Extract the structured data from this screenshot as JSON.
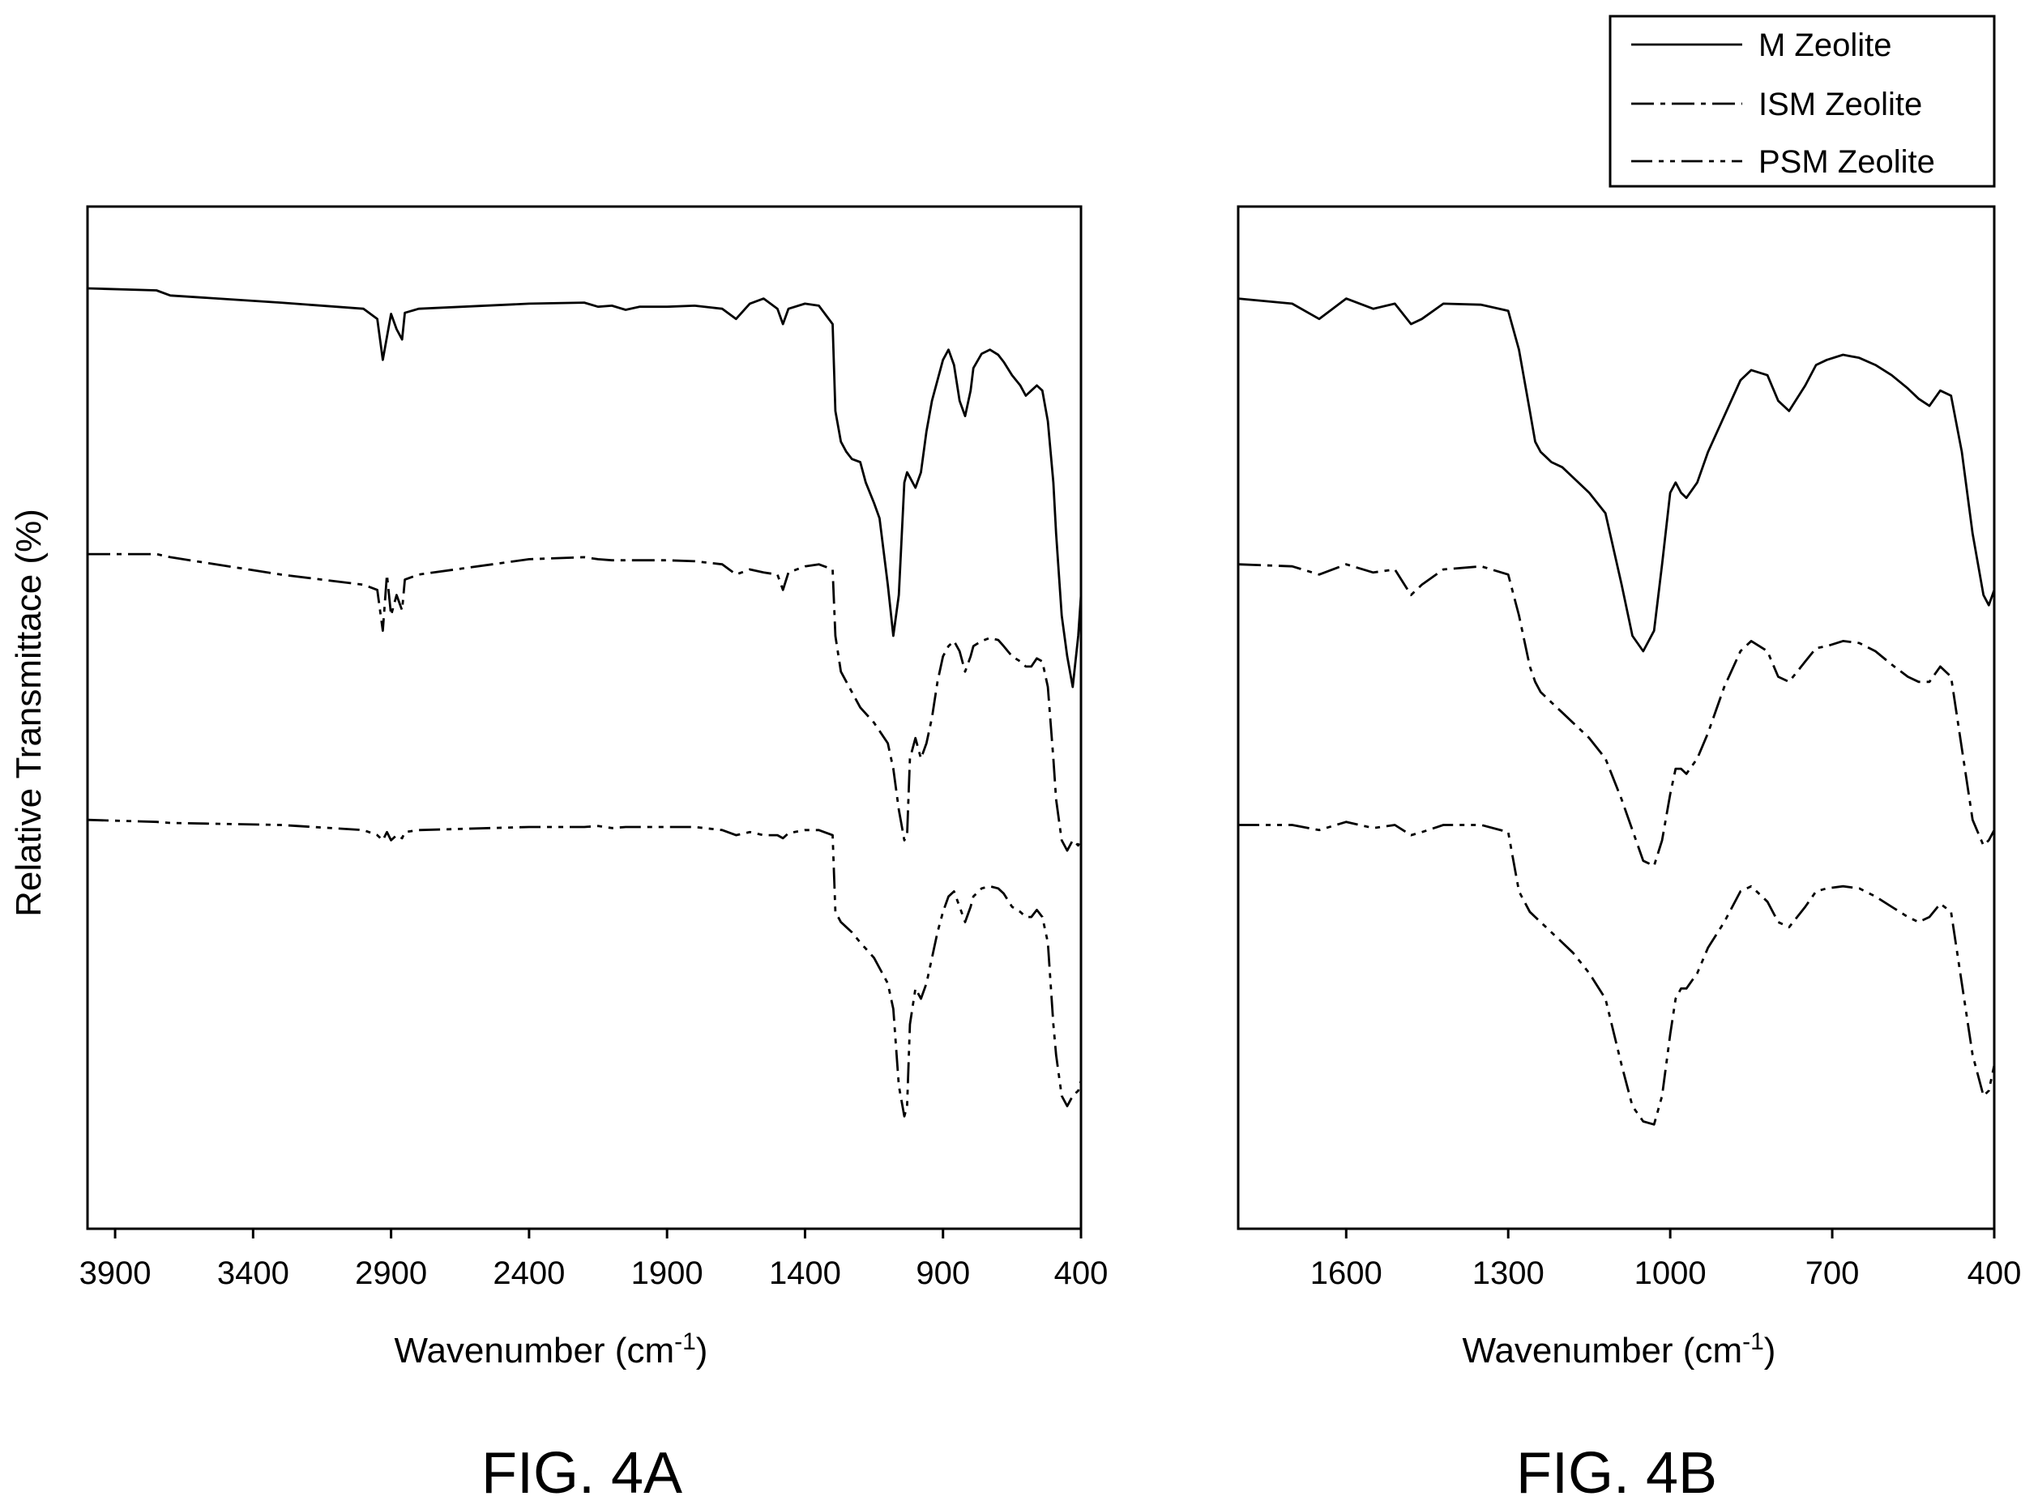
{
  "figure": {
    "ylabel": "Relative Transmittace (%)",
    "legend": {
      "placement": "top-right",
      "entries": [
        {
          "label": "M Zeolite",
          "dash": "solid"
        },
        {
          "label": "ISM Zeolite",
          "dash": "dash-dot"
        },
        {
          "label": "PSM Zeolite",
          "dash": "dash-dot-dot"
        }
      ]
    }
  },
  "chart_data": [
    {
      "type": "line",
      "caption": "FIG. 4A",
      "xlabel": "Wavenumber (cm",
      "xlabel_sup": "-1",
      "xlabel_close": ")",
      "xlim": [
        4000,
        400
      ],
      "xticks": [
        "3900",
        "3400",
        "2900",
        "2400",
        "1900",
        "1400",
        "900",
        "400"
      ],
      "ylim": [
        0,
        100
      ],
      "series": [
        {
          "name": "M Zeolite",
          "dash": "solid",
          "x": [
            4000,
            3750,
            3700,
            3300,
            3000,
            2950,
            2930,
            2900,
            2880,
            2860,
            2850,
            2800,
            2400,
            2200,
            2150,
            2100,
            2050,
            2000,
            1900,
            1800,
            1700,
            1650,
            1600,
            1550,
            1500,
            1480,
            1460,
            1400,
            1350,
            1300,
            1290,
            1270,
            1250,
            1230,
            1200,
            1180,
            1150,
            1130,
            1100,
            1080,
            1060,
            1040,
            1030,
            1020,
            1000,
            980,
            960,
            940,
            920,
            900,
            880,
            860,
            840,
            820,
            800,
            790,
            760,
            730,
            700,
            680,
            650,
            620,
            600,
            580,
            560,
            540,
            520,
            500,
            490,
            470,
            450,
            430,
            410,
            400
          ],
          "y": [
            92.0,
            91.8,
            91.3,
            90.6,
            90.0,
            89.0,
            85.0,
            89.5,
            88.0,
            87.0,
            89.6,
            90.0,
            90.5,
            90.6,
            90.2,
            90.3,
            89.9,
            90.2,
            90.2,
            90.3,
            90.0,
            89.0,
            90.5,
            91.0,
            90.0,
            88.5,
            90.0,
            90.5,
            90.3,
            88.5,
            80.0,
            77.0,
            76.0,
            75.3,
            75.0,
            73.0,
            71.0,
            69.5,
            63.0,
            58.0,
            62.0,
            73.0,
            74.0,
            73.5,
            72.5,
            74.0,
            78.0,
            81.0,
            83.0,
            85.0,
            86.0,
            84.5,
            81.0,
            79.5,
            82.0,
            84.2,
            85.6,
            86.0,
            85.5,
            84.8,
            83.5,
            82.5,
            81.5,
            82.0,
            82.5,
            82.0,
            79.0,
            73.0,
            68.0,
            60.0,
            56.0,
            53.0,
            58.0,
            62.0
          ]
        },
        {
          "name": "ISM Zeolite",
          "dash": "dash-dot",
          "x": [
            4000,
            3750,
            3700,
            3300,
            3000,
            2950,
            2930,
            2915,
            2900,
            2880,
            2860,
            2850,
            2800,
            2400,
            2200,
            2150,
            2100,
            2050,
            1900,
            1800,
            1700,
            1650,
            1600,
            1550,
            1500,
            1480,
            1460,
            1400,
            1350,
            1300,
            1290,
            1270,
            1250,
            1230,
            1200,
            1150,
            1100,
            1080,
            1060,
            1040,
            1030,
            1020,
            1000,
            980,
            960,
            940,
            920,
            900,
            880,
            860,
            840,
            820,
            800,
            790,
            760,
            730,
            700,
            680,
            650,
            620,
            600,
            580,
            560,
            540,
            520,
            500,
            490,
            470,
            450,
            430,
            410,
            400
          ],
          "y": [
            66.0,
            66.0,
            65.7,
            64.0,
            63.0,
            62.5,
            58.5,
            64.0,
            60.0,
            62.0,
            60.5,
            63.5,
            64.0,
            65.5,
            65.7,
            65.5,
            65.4,
            65.4,
            65.4,
            65.3,
            65.0,
            64.0,
            64.5,
            64.2,
            64.0,
            62.5,
            64.2,
            64.8,
            65.0,
            64.5,
            58.0,
            54.5,
            53.5,
            52.5,
            51.0,
            49.5,
            47.5,
            45.0,
            41.0,
            38.0,
            38.5,
            46.0,
            48.0,
            46.0,
            47.5,
            50.0,
            53.5,
            56.0,
            57.0,
            57.5,
            56.5,
            54.5,
            56.0,
            57.0,
            57.5,
            57.8,
            57.6,
            57.0,
            56.0,
            55.5,
            55.0,
            55.0,
            55.8,
            55.5,
            53.0,
            46.0,
            42.0,
            38.0,
            37.0,
            38.0,
            37.5,
            38.2
          ]
        },
        {
          "name": "PSM Zeolite",
          "dash": "dash-dot-dot",
          "x": [
            4000,
            3750,
            3700,
            3300,
            3000,
            2950,
            2930,
            2915,
            2900,
            2880,
            2860,
            2850,
            2800,
            2400,
            2200,
            2150,
            2100,
            2050,
            1900,
            1800,
            1700,
            1650,
            1600,
            1550,
            1500,
            1480,
            1460,
            1400,
            1350,
            1300,
            1290,
            1270,
            1250,
            1230,
            1200,
            1150,
            1100,
            1080,
            1060,
            1040,
            1030,
            1020,
            1000,
            980,
            960,
            940,
            920,
            900,
            880,
            860,
            840,
            820,
            800,
            790,
            760,
            730,
            700,
            680,
            650,
            620,
            600,
            580,
            560,
            540,
            520,
            500,
            490,
            470,
            450,
            430,
            410,
            400
          ],
          "y": [
            40.0,
            39.8,
            39.7,
            39.5,
            39.0,
            38.5,
            38.0,
            38.8,
            38.0,
            38.5,
            38.2,
            38.8,
            39.0,
            39.3,
            39.3,
            39.4,
            39.2,
            39.3,
            39.3,
            39.3,
            39.0,
            38.5,
            38.8,
            38.5,
            38.5,
            38.2,
            38.7,
            39.0,
            39.0,
            38.5,
            31.0,
            30.0,
            29.5,
            29.0,
            28.0,
            26.5,
            24.0,
            21.5,
            14.0,
            11.0,
            12.0,
            20.0,
            23.5,
            22.5,
            24.0,
            26.5,
            29.0,
            31.0,
            32.5,
            33.0,
            31.5,
            30.0,
            31.5,
            32.5,
            33.3,
            33.5,
            33.3,
            32.8,
            31.5,
            31.0,
            30.5,
            30.5,
            31.2,
            30.5,
            28.0,
            20.0,
            17.0,
            13.0,
            12.0,
            13.0,
            13.5,
            14.5
          ]
        }
      ]
    },
    {
      "type": "line",
      "caption": "FIG. 4B",
      "xlabel": "Wavenumber (cm",
      "xlabel_sup": "-1",
      "xlabel_close": ")",
      "xlim": [
        1800,
        400
      ],
      "xticks": [
        "1600",
        "1300",
        "1000",
        "700",
        "400"
      ],
      "ylim": [
        0,
        100
      ],
      "series": [
        {
          "name": "M Zeolite",
          "dash": "solid",
          "x": [
            1800,
            1700,
            1650,
            1600,
            1550,
            1510,
            1480,
            1460,
            1420,
            1350,
            1300,
            1280,
            1260,
            1250,
            1240,
            1230,
            1220,
            1200,
            1180,
            1150,
            1120,
            1090,
            1070,
            1050,
            1030,
            1015,
            1000,
            990,
            980,
            970,
            950,
            930,
            900,
            870,
            850,
            820,
            800,
            780,
            750,
            730,
            710,
            680,
            650,
            620,
            590,
            560,
            540,
            520,
            500,
            480,
            460,
            440,
            420,
            410,
            400
          ],
          "y": [
            91.0,
            90.5,
            89.0,
            91.0,
            90.0,
            90.5,
            88.5,
            89.0,
            90.5,
            90.4,
            89.8,
            86.0,
            80.0,
            77.0,
            76.0,
            75.5,
            75.0,
            74.5,
            73.5,
            72.0,
            70.0,
            63.0,
            58.0,
            56.5,
            58.5,
            65.0,
            72.0,
            73.0,
            72.0,
            71.5,
            73.0,
            76.0,
            79.5,
            83.0,
            84.0,
            83.5,
            81.0,
            80.0,
            82.5,
            84.5,
            85.0,
            85.5,
            85.2,
            84.5,
            83.5,
            82.2,
            81.2,
            80.5,
            82.0,
            81.5,
            76.0,
            68.0,
            62.0,
            61.0,
            62.5
          ]
        },
        {
          "name": "ISM Zeolite",
          "dash": "dash-dot",
          "x": [
            1800,
            1700,
            1650,
            1600,
            1550,
            1510,
            1480,
            1460,
            1420,
            1350,
            1300,
            1280,
            1260,
            1250,
            1240,
            1230,
            1220,
            1200,
            1180,
            1150,
            1120,
            1090,
            1070,
            1050,
            1030,
            1015,
            1000,
            990,
            980,
            970,
            950,
            930,
            900,
            870,
            850,
            820,
            800,
            780,
            750,
            730,
            710,
            680,
            650,
            620,
            590,
            560,
            540,
            520,
            500,
            480,
            460,
            440,
            420,
            410,
            400
          ],
          "y": [
            65.0,
            64.8,
            64.0,
            65.0,
            64.2,
            64.5,
            62.0,
            63.0,
            64.5,
            64.8,
            64.0,
            60.0,
            55.0,
            53.5,
            52.5,
            52.0,
            51.5,
            50.5,
            49.5,
            48.0,
            46.0,
            42.0,
            39.0,
            36.0,
            35.5,
            38.0,
            42.5,
            45.0,
            45.0,
            44.5,
            46.0,
            48.5,
            53.0,
            56.5,
            57.5,
            56.5,
            54.0,
            53.5,
            55.5,
            56.8,
            57.0,
            57.5,
            57.3,
            56.5,
            55.2,
            54.0,
            53.5,
            53.5,
            55.0,
            54.0,
            47.0,
            40.0,
            37.5,
            38.0,
            39.0
          ]
        },
        {
          "name": "PSM Zeolite",
          "dash": "dash-dot-dot",
          "x": [
            1800,
            1700,
            1650,
            1600,
            1550,
            1510,
            1480,
            1460,
            1420,
            1350,
            1300,
            1280,
            1260,
            1250,
            1240,
            1230,
            1220,
            1200,
            1180,
            1150,
            1120,
            1090,
            1070,
            1050,
            1030,
            1015,
            1000,
            990,
            980,
            970,
            950,
            930,
            900,
            870,
            850,
            820,
            800,
            780,
            750,
            730,
            710,
            680,
            650,
            620,
            590,
            560,
            540,
            520,
            500,
            480,
            460,
            440,
            420,
            410,
            400
          ],
          "y": [
            39.5,
            39.5,
            39.0,
            39.8,
            39.2,
            39.5,
            38.5,
            38.8,
            39.5,
            39.5,
            38.8,
            33.0,
            31.0,
            30.5,
            30.0,
            29.5,
            29.0,
            28.0,
            27.0,
            25.0,
            22.5,
            16.0,
            12.0,
            10.5,
            10.2,
            13.0,
            19.0,
            22.5,
            23.5,
            23.5,
            25.0,
            27.5,
            30.0,
            33.0,
            33.5,
            32.0,
            30.0,
            29.5,
            31.5,
            33.0,
            33.3,
            33.5,
            33.3,
            32.5,
            31.5,
            30.5,
            30.0,
            30.5,
            31.8,
            31.0,
            24.0,
            17.0,
            13.0,
            13.5,
            16.0
          ]
        }
      ]
    }
  ]
}
